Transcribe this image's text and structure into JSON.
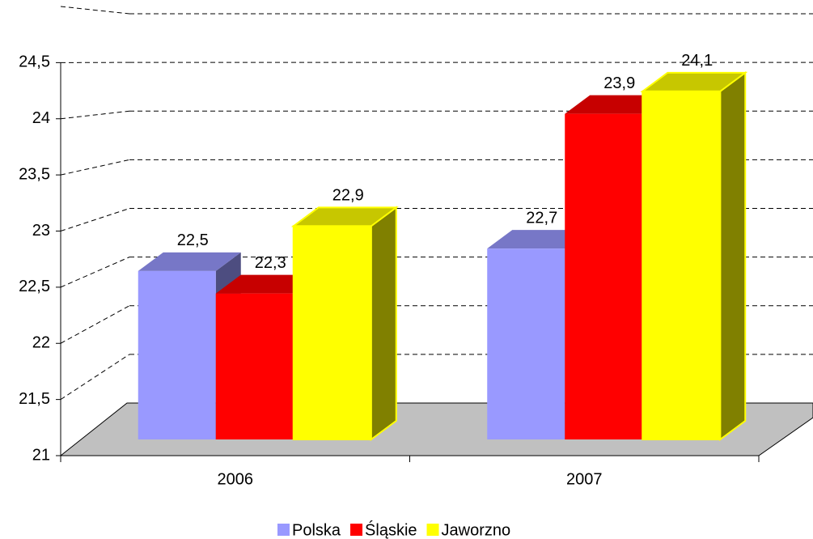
{
  "chart_data": {
    "type": "bar3d",
    "categories": [
      "2006",
      "2007"
    ],
    "series": [
      {
        "name": "Polska",
        "color": "#9999ff",
        "values": [
          22.5,
          22.7
        ],
        "value_labels": [
          "22,5",
          "22,7"
        ]
      },
      {
        "name": "Śląskie",
        "color": "#ff0000",
        "values": [
          22.3,
          23.9
        ],
        "value_labels": [
          "22,3",
          "23,9"
        ]
      },
      {
        "name": "Jaworzno",
        "color": "#ffff00",
        "values": [
          22.9,
          24.1
        ],
        "value_labels": [
          "22,9",
          "24,1"
        ]
      }
    ],
    "ylim": [
      21,
      25
    ],
    "yticks": [
      21,
      {
        "value": 21.5,
        "label": "21,5"
      },
      22,
      {
        "value": 22.5,
        "label": "22,5"
      },
      23,
      {
        "value": 23.5,
        "label": "23,5"
      },
      24,
      {
        "value": 24.5,
        "label": "24,5"
      }
    ],
    "grid": true,
    "legend": "bottom"
  }
}
